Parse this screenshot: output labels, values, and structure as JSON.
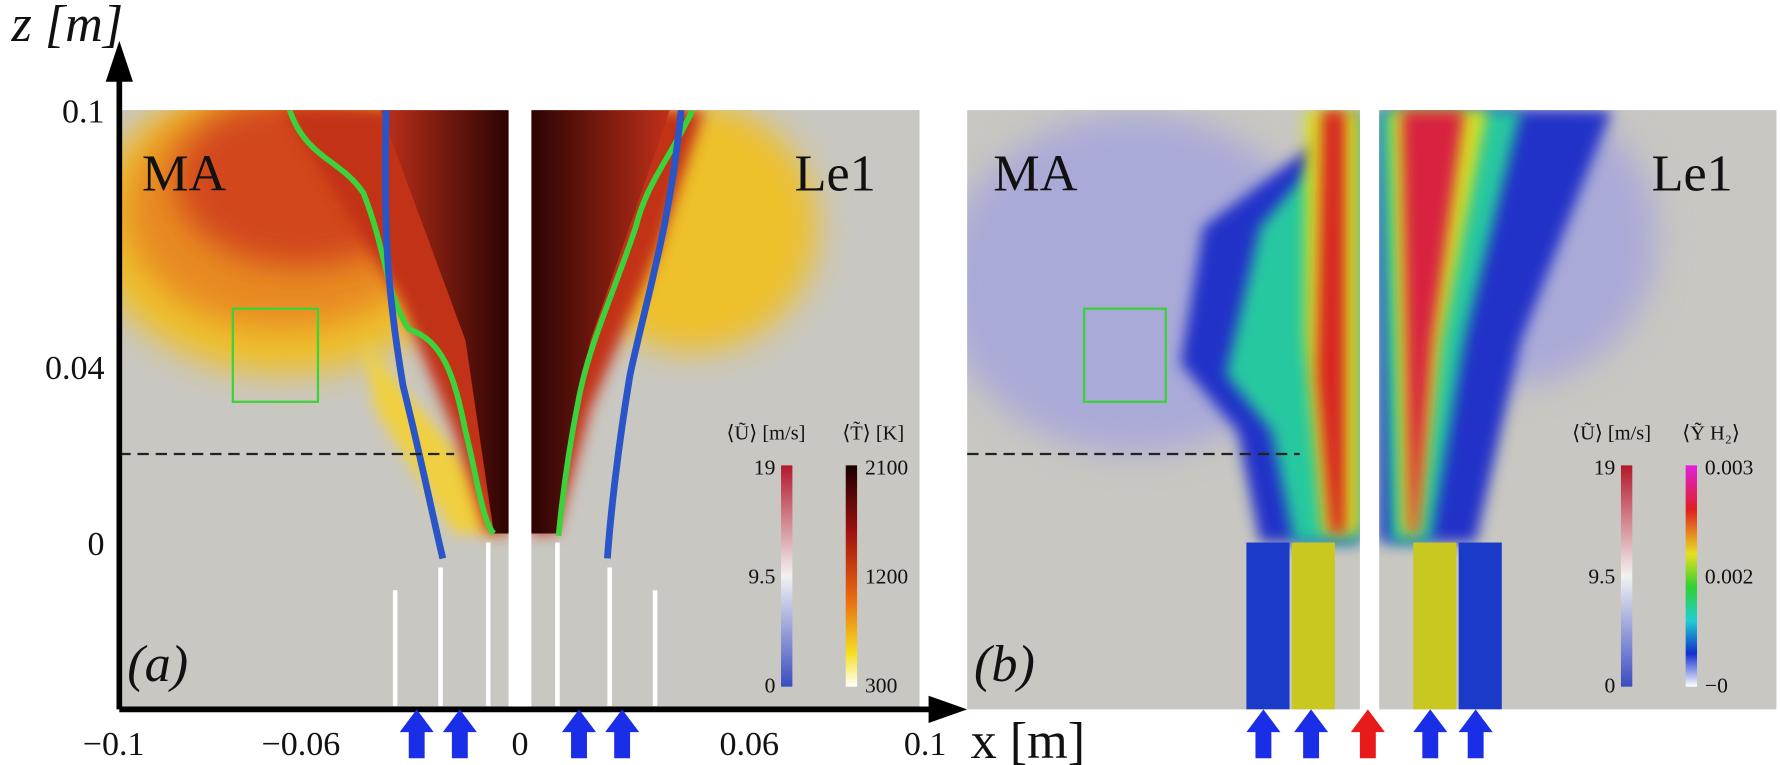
{
  "axes": {
    "y_label": "z [m]",
    "x_label": "x [m]",
    "yticks": [
      "0.1",
      "0.04",
      "0"
    ],
    "xticks": [
      "−0.1",
      "−0.06",
      "0",
      "0.06",
      "0.1"
    ]
  },
  "panels": [
    {
      "label": "(a)",
      "left_label": "MA",
      "right_label": "Le1",
      "colorbars": [
        {
          "title": "⟨Ũ⟩ [m/s]",
          "ticks": [
            "19",
            "9.5",
            "0"
          ]
        },
        {
          "title": "⟨T̃⟩ [K]",
          "ticks": [
            "2100",
            "1200",
            "300"
          ]
        }
      ]
    },
    {
      "label": "(b)",
      "left_label": "MA",
      "right_label": "Le1",
      "colorbars": [
        {
          "title": "⟨Ũ⟩ [m/s]",
          "ticks": [
            "19",
            "9.5",
            "0"
          ]
        },
        {
          "title": "⟨Ỹ H₂⟩",
          "ticks": [
            "0.003",
            "0.002",
            "−0"
          ]
        }
      ]
    }
  ]
}
